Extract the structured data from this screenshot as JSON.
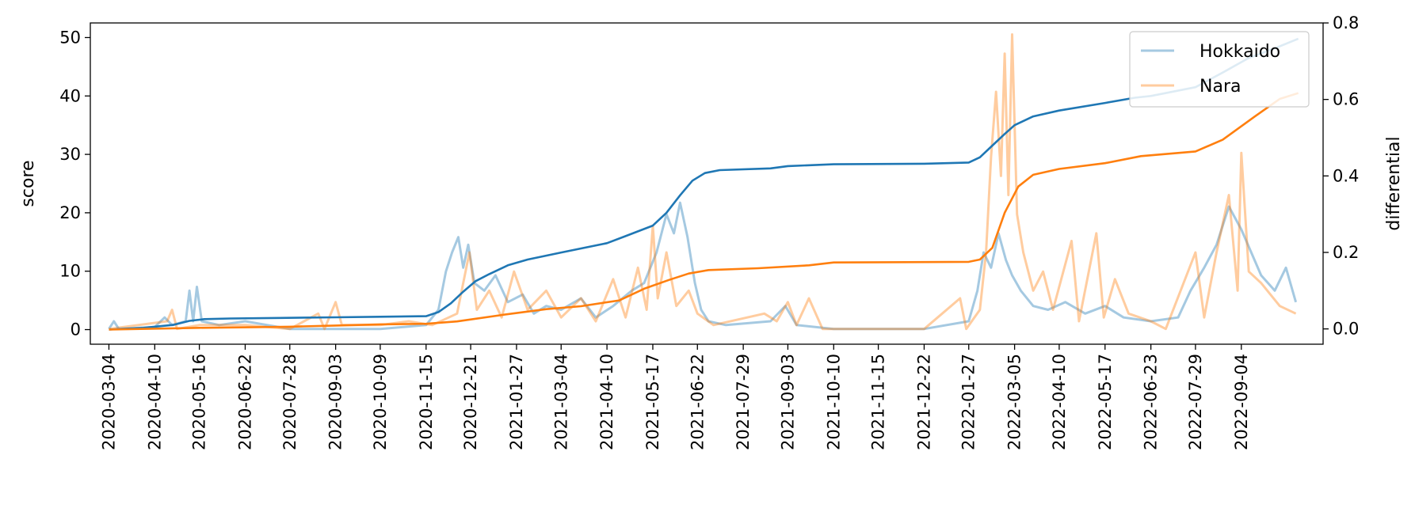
{
  "chart_data": {
    "type": "line",
    "xlabel": "",
    "ylabel": "score",
    "y2label": "differential",
    "ylim": [
      -2.5,
      52.5
    ],
    "y2lim": [
      -0.04,
      0.8
    ],
    "xlim": [
      "2020-02-18",
      "2022-11-09"
    ],
    "yticks": [
      0,
      10,
      20,
      30,
      40,
      50
    ],
    "y2ticks": [
      "0.0",
      "0.2",
      "0.4",
      "0.6",
      "0.8"
    ],
    "x_tick_labels": [
      "2020-03-04",
      "2020-04-10",
      "2020-05-16",
      "2020-06-22",
      "2020-07-28",
      "2020-09-03",
      "2020-10-09",
      "2020-11-15",
      "2020-12-21",
      "2021-01-27",
      "2021-03-04",
      "2021-04-10",
      "2021-05-17",
      "2021-06-22",
      "2021-07-29",
      "2021-09-03",
      "2021-10-10",
      "2021-11-15",
      "2021-12-22",
      "2022-01-27",
      "2022-03-05",
      "2022-04-10",
      "2022-05-17",
      "2022-06-23",
      "2022-07-29",
      "2022-09-04"
    ],
    "legend": {
      "location": "top-right",
      "entries": [
        "Hokkaido",
        "Nara"
      ]
    },
    "grid": false,
    "colors": {
      "Hokkaido": "#1f77b4",
      "Nara": "#ff7f0e"
    },
    "series": [
      {
        "name": "Hokkaido",
        "axis": "score",
        "role": "cumulative",
        "points": [
          [
            "2020-03-04",
            0
          ],
          [
            "2020-04-01",
            0.3
          ],
          [
            "2020-04-25",
            0.8
          ],
          [
            "2020-05-08",
            1.5
          ],
          [
            "2020-05-20",
            1.8
          ],
          [
            "2020-06-10",
            1.9
          ],
          [
            "2020-07-20",
            2.0
          ],
          [
            "2020-09-03",
            2.1
          ],
          [
            "2020-10-09",
            2.2
          ],
          [
            "2020-11-15",
            2.3
          ],
          [
            "2020-11-25",
            3.0
          ],
          [
            "2020-12-05",
            4.5
          ],
          [
            "2020-12-15",
            6.5
          ],
          [
            "2020-12-25",
            8.3
          ],
          [
            "2021-01-05",
            9.5
          ],
          [
            "2021-01-20",
            11.0
          ],
          [
            "2021-02-05",
            12.0
          ],
          [
            "2021-03-04",
            13.2
          ],
          [
            "2021-04-10",
            14.8
          ],
          [
            "2021-04-25",
            16.0
          ],
          [
            "2021-05-17",
            17.8
          ],
          [
            "2021-05-28",
            20.0
          ],
          [
            "2021-06-08",
            23.0
          ],
          [
            "2021-06-18",
            25.5
          ],
          [
            "2021-06-28",
            26.8
          ],
          [
            "2021-07-10",
            27.3
          ],
          [
            "2021-08-20",
            27.6
          ],
          [
            "2021-09-03",
            28.0
          ],
          [
            "2021-10-10",
            28.3
          ],
          [
            "2021-12-22",
            28.4
          ],
          [
            "2022-01-27",
            28.6
          ],
          [
            "2022-02-05",
            29.5
          ],
          [
            "2022-02-15",
            31.5
          ],
          [
            "2022-02-25",
            33.5
          ],
          [
            "2022-03-05",
            35.0
          ],
          [
            "2022-03-20",
            36.5
          ],
          [
            "2022-04-10",
            37.5
          ],
          [
            "2022-05-17",
            38.8
          ],
          [
            "2022-06-10",
            39.7
          ],
          [
            "2022-06-23",
            40.0
          ],
          [
            "2022-07-29",
            41.5
          ],
          [
            "2022-08-20",
            44.0
          ],
          [
            "2022-09-10",
            46.5
          ],
          [
            "2022-10-05",
            48.5
          ],
          [
            "2022-10-20",
            49.8
          ]
        ]
      },
      {
        "name": "Nara",
        "axis": "score",
        "role": "cumulative",
        "points": [
          [
            "2020-03-04",
            0
          ],
          [
            "2020-05-16",
            0.3
          ],
          [
            "2020-07-28",
            0.5
          ],
          [
            "2020-09-03",
            0.7
          ],
          [
            "2020-10-09",
            0.9
          ],
          [
            "2020-11-15",
            1.0
          ],
          [
            "2020-12-10",
            1.4
          ],
          [
            "2021-01-15",
            2.5
          ],
          [
            "2021-02-20",
            3.5
          ],
          [
            "2021-03-20",
            4.0
          ],
          [
            "2021-04-20",
            5.0
          ],
          [
            "2021-05-10",
            7.0
          ],
          [
            "2021-05-30",
            8.5
          ],
          [
            "2021-06-15",
            9.6
          ],
          [
            "2021-07-01",
            10.2
          ],
          [
            "2021-08-10",
            10.5
          ],
          [
            "2021-09-20",
            11.0
          ],
          [
            "2021-10-10",
            11.5
          ],
          [
            "2022-01-27",
            11.6
          ],
          [
            "2022-02-05",
            12.0
          ],
          [
            "2022-02-15",
            14.0
          ],
          [
            "2022-02-25",
            20.0
          ],
          [
            "2022-03-08",
            24.5
          ],
          [
            "2022-03-20",
            26.5
          ],
          [
            "2022-04-10",
            27.5
          ],
          [
            "2022-05-17",
            28.5
          ],
          [
            "2022-06-15",
            29.7
          ],
          [
            "2022-07-29",
            30.5
          ],
          [
            "2022-08-20",
            32.5
          ],
          [
            "2022-09-15",
            36.5
          ],
          [
            "2022-10-05",
            39.5
          ],
          [
            "2022-10-20",
            40.5
          ]
        ]
      },
      {
        "name": "Hokkaido",
        "axis": "differential",
        "role": "daily",
        "points": [
          [
            "2020-03-04",
            0.0
          ],
          [
            "2020-03-08",
            0.02
          ],
          [
            "2020-03-12",
            0.0
          ],
          [
            "2020-04-10",
            0.005
          ],
          [
            "2020-04-18",
            0.03
          ],
          [
            "2020-04-24",
            0.01
          ],
          [
            "2020-05-05",
            0.02
          ],
          [
            "2020-05-08",
            0.1
          ],
          [
            "2020-05-11",
            0.02
          ],
          [
            "2020-05-14",
            0.11
          ],
          [
            "2020-05-18",
            0.02
          ],
          [
            "2020-06-01",
            0.01
          ],
          [
            "2020-06-22",
            0.02
          ],
          [
            "2020-07-28",
            0.0
          ],
          [
            "2020-09-03",
            0.0
          ],
          [
            "2020-10-09",
            0.0
          ],
          [
            "2020-11-15",
            0.01
          ],
          [
            "2020-11-25",
            0.05
          ],
          [
            "2020-12-01",
            0.15
          ],
          [
            "2020-12-06",
            0.2
          ],
          [
            "2020-12-11",
            0.24
          ],
          [
            "2020-12-15",
            0.16
          ],
          [
            "2020-12-19",
            0.22
          ],
          [
            "2020-12-24",
            0.12
          ],
          [
            "2021-01-01",
            0.1
          ],
          [
            "2021-01-10",
            0.14
          ],
          [
            "2021-01-20",
            0.07
          ],
          [
            "2021-02-01",
            0.09
          ],
          [
            "2021-02-10",
            0.04
          ],
          [
            "2021-02-20",
            0.06
          ],
          [
            "2021-03-04",
            0.05
          ],
          [
            "2021-03-20",
            0.08
          ],
          [
            "2021-04-01",
            0.03
          ],
          [
            "2021-04-15",
            0.06
          ],
          [
            "2021-04-30",
            0.1
          ],
          [
            "2021-05-10",
            0.12
          ],
          [
            "2021-05-20",
            0.2
          ],
          [
            "2021-05-28",
            0.3
          ],
          [
            "2021-06-03",
            0.25
          ],
          [
            "2021-06-08",
            0.33
          ],
          [
            "2021-06-14",
            0.24
          ],
          [
            "2021-06-20",
            0.12
          ],
          [
            "2021-06-25",
            0.05
          ],
          [
            "2021-07-01",
            0.02
          ],
          [
            "2021-07-15",
            0.01
          ],
          [
            "2021-08-20",
            0.02
          ],
          [
            "2021-09-01",
            0.06
          ],
          [
            "2021-09-10",
            0.01
          ],
          [
            "2021-10-10",
            0.0
          ],
          [
            "2021-12-22",
            0.0
          ],
          [
            "2022-01-27",
            0.02
          ],
          [
            "2022-02-03",
            0.1
          ],
          [
            "2022-02-08",
            0.2
          ],
          [
            "2022-02-14",
            0.16
          ],
          [
            "2022-02-20",
            0.25
          ],
          [
            "2022-02-26",
            0.18
          ],
          [
            "2022-03-03",
            0.14
          ],
          [
            "2022-03-10",
            0.1
          ],
          [
            "2022-03-20",
            0.06
          ],
          [
            "2022-04-01",
            0.05
          ],
          [
            "2022-04-15",
            0.07
          ],
          [
            "2022-05-01",
            0.04
          ],
          [
            "2022-05-17",
            0.06
          ],
          [
            "2022-06-01",
            0.03
          ],
          [
            "2022-06-23",
            0.02
          ],
          [
            "2022-07-15",
            0.03
          ],
          [
            "2022-07-25",
            0.1
          ],
          [
            "2022-08-05",
            0.16
          ],
          [
            "2022-08-15",
            0.22
          ],
          [
            "2022-08-25",
            0.32
          ],
          [
            "2022-09-04",
            0.26
          ],
          [
            "2022-09-12",
            0.2
          ],
          [
            "2022-09-20",
            0.14
          ],
          [
            "2022-10-01",
            0.1
          ],
          [
            "2022-10-10",
            0.16
          ],
          [
            "2022-10-18",
            0.07
          ]
        ]
      },
      {
        "name": "Nara",
        "axis": "differential",
        "role": "daily",
        "points": [
          [
            "2020-03-04",
            0.0
          ],
          [
            "2020-04-20",
            0.02
          ],
          [
            "2020-04-24",
            0.05
          ],
          [
            "2020-04-28",
            0.0
          ],
          [
            "2020-05-16",
            0.01
          ],
          [
            "2020-06-22",
            0.01
          ],
          [
            "2020-07-28",
            0.0
          ],
          [
            "2020-08-20",
            0.04
          ],
          [
            "2020-08-25",
            0.0
          ],
          [
            "2020-09-03",
            0.07
          ],
          [
            "2020-09-08",
            0.01
          ],
          [
            "2020-10-09",
            0.01
          ],
          [
            "2020-11-01",
            0.02
          ],
          [
            "2020-11-20",
            0.01
          ],
          [
            "2020-12-10",
            0.04
          ],
          [
            "2020-12-20",
            0.2
          ],
          [
            "2020-12-26",
            0.05
          ],
          [
            "2021-01-05",
            0.1
          ],
          [
            "2021-01-15",
            0.03
          ],
          [
            "2021-01-25",
            0.15
          ],
          [
            "2021-02-05",
            0.05
          ],
          [
            "2021-02-20",
            0.1
          ],
          [
            "2021-03-04",
            0.03
          ],
          [
            "2021-03-20",
            0.08
          ],
          [
            "2021-04-01",
            0.02
          ],
          [
            "2021-04-15",
            0.13
          ],
          [
            "2021-04-25",
            0.03
          ],
          [
            "2021-05-05",
            0.16
          ],
          [
            "2021-05-12",
            0.05
          ],
          [
            "2021-05-17",
            0.27
          ],
          [
            "2021-05-21",
            0.08
          ],
          [
            "2021-05-28",
            0.2
          ],
          [
            "2021-06-05",
            0.06
          ],
          [
            "2021-06-15",
            0.1
          ],
          [
            "2021-06-22",
            0.04
          ],
          [
            "2021-07-05",
            0.01
          ],
          [
            "2021-08-15",
            0.04
          ],
          [
            "2021-08-25",
            0.02
          ],
          [
            "2021-09-03",
            0.07
          ],
          [
            "2021-09-10",
            0.01
          ],
          [
            "2021-09-20",
            0.08
          ],
          [
            "2021-10-01",
            0.0
          ],
          [
            "2021-12-22",
            0.0
          ],
          [
            "2022-01-20",
            0.08
          ],
          [
            "2022-01-25",
            0.0
          ],
          [
            "2022-02-05",
            0.05
          ],
          [
            "2022-02-10",
            0.2
          ],
          [
            "2022-02-14",
            0.45
          ],
          [
            "2022-02-18",
            0.62
          ],
          [
            "2022-02-22",
            0.4
          ],
          [
            "2022-02-25",
            0.72
          ],
          [
            "2022-02-28",
            0.35
          ],
          [
            "2022-03-03",
            0.77
          ],
          [
            "2022-03-07",
            0.3
          ],
          [
            "2022-03-12",
            0.2
          ],
          [
            "2022-03-20",
            0.1
          ],
          [
            "2022-03-28",
            0.15
          ],
          [
            "2022-04-05",
            0.05
          ],
          [
            "2022-04-20",
            0.23
          ],
          [
            "2022-04-26",
            0.02
          ],
          [
            "2022-05-10",
            0.25
          ],
          [
            "2022-05-16",
            0.03
          ],
          [
            "2022-05-25",
            0.13
          ],
          [
            "2022-06-05",
            0.04
          ],
          [
            "2022-06-23",
            0.02
          ],
          [
            "2022-07-05",
            0.0
          ],
          [
            "2022-07-29",
            0.2
          ],
          [
            "2022-08-05",
            0.03
          ],
          [
            "2022-08-15",
            0.2
          ],
          [
            "2022-08-25",
            0.35
          ],
          [
            "2022-09-01",
            0.1
          ],
          [
            "2022-09-04",
            0.46
          ],
          [
            "2022-09-10",
            0.15
          ],
          [
            "2022-09-20",
            0.12
          ],
          [
            "2022-10-05",
            0.06
          ],
          [
            "2022-10-18",
            0.04
          ]
        ]
      }
    ]
  }
}
